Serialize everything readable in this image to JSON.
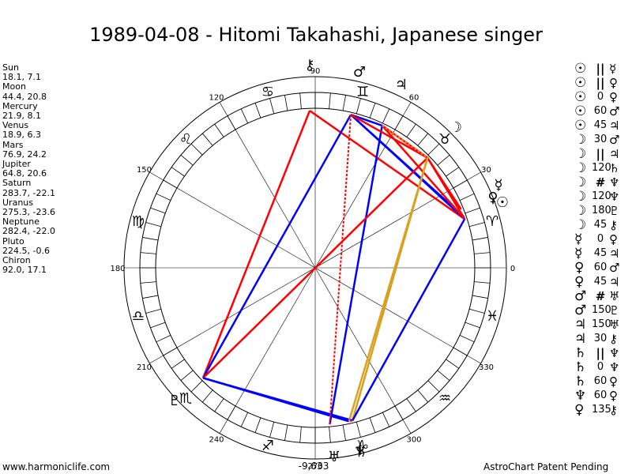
{
  "title": "1989-04-08 - Hitomi Takahashi, Japanese singer",
  "planets": [
    {
      "name": "Sun",
      "coords": "18.1, 7.1",
      "glyph": "☉",
      "lon": 18.1
    },
    {
      "name": "Moon",
      "coords": "44.4, 20.8",
      "glyph": "☽",
      "lon": 44.4
    },
    {
      "name": "Mercury",
      "coords": "21.9, 8.1",
      "glyph": "☿",
      "lon": 21.9
    },
    {
      "name": "Venus",
      "coords": "18.9, 6.3",
      "glyph": "♀",
      "lon": 18.9
    },
    {
      "name": "Mars",
      "coords": "76.9, 24.2",
      "glyph": "♂",
      "lon": 76.9
    },
    {
      "name": "Jupiter",
      "coords": "64.8, 20.6",
      "glyph": "♃",
      "lon": 64.8
    },
    {
      "name": "Saturn",
      "coords": "283.7, -22.1",
      "glyph": "♄",
      "lon": 283.7
    },
    {
      "name": "Uranus",
      "coords": "275.3, -23.6",
      "glyph": "♅",
      "lon": 275.3
    },
    {
      "name": "Neptune",
      "coords": "282.4, -22.0",
      "glyph": "♆",
      "lon": 282.4
    },
    {
      "name": "Pluto",
      "coords": "224.5, -0.6",
      "glyph": "♇",
      "lon": 224.5
    },
    {
      "name": "Chiron",
      "coords": "92.0, 17.1",
      "glyph": "⚷",
      "lon": 92.0
    }
  ],
  "aspects": [
    {
      "p1": "☉",
      "type": "||",
      "p2": "☿"
    },
    {
      "p1": "☉",
      "type": "||",
      "p2": "♀"
    },
    {
      "p1": "☉",
      "type": "0",
      "p2": "♀"
    },
    {
      "p1": "☉",
      "type": "60",
      "p2": "♂"
    },
    {
      "p1": "☉",
      "type": "45",
      "p2": "♃"
    },
    {
      "p1": "☽",
      "type": "30",
      "p2": "♂"
    },
    {
      "p1": "☽",
      "type": "||",
      "p2": "♃"
    },
    {
      "p1": "☽",
      "type": "120",
      "p2": "♄"
    },
    {
      "p1": "☽",
      "type": "#",
      "p2": "♆"
    },
    {
      "p1": "☽",
      "type": "120",
      "p2": "♆"
    },
    {
      "p1": "☽",
      "type": "180",
      "p2": "♇"
    },
    {
      "p1": "☽",
      "type": "45",
      "p2": "⚷"
    },
    {
      "p1": "☿",
      "type": "0",
      "p2": "♀"
    },
    {
      "p1": "☿",
      "type": "45",
      "p2": "♃"
    },
    {
      "p1": "♀",
      "type": "60",
      "p2": "♂"
    },
    {
      "p1": "♀",
      "type": "45",
      "p2": "♃"
    },
    {
      "p1": "♂",
      "type": "#",
      "p2": "♅"
    },
    {
      "p1": "♂",
      "type": "150",
      "p2": "♇"
    },
    {
      "p1": "♃",
      "type": "150",
      "p2": "♅"
    },
    {
      "p1": "♃",
      "type": "30",
      "p2": "⚷"
    },
    {
      "p1": "♄",
      "type": "||",
      "p2": "♆"
    },
    {
      "p1": "♄",
      "type": "0",
      "p2": "♆"
    },
    {
      "p1": "♄",
      "type": "60",
      "p2": "♀"
    },
    {
      "p1": "♆",
      "type": "60",
      "p2": "♀"
    },
    {
      "p1": "♀",
      "type": "135",
      "p2": "⚷"
    }
  ],
  "degree_labels": [
    {
      "text": "0",
      "deg": 0
    },
    {
      "text": "30",
      "deg": 30
    },
    {
      "text": "60",
      "deg": 60
    },
    {
      "text": "90",
      "deg": 90
    },
    {
      "text": "120",
      "deg": 120
    },
    {
      "text": "150",
      "deg": 150
    },
    {
      "text": "180",
      "deg": 180
    },
    {
      "text": "210",
      "deg": 210
    },
    {
      "text": "240",
      "deg": 240
    },
    {
      "text": "270",
      "deg": 270
    },
    {
      "text": "300",
      "deg": 300
    },
    {
      "text": "330",
      "deg": 330
    }
  ],
  "signs": [
    {
      "glyph": "♓",
      "deg": 345
    },
    {
      "glyph": "♈",
      "deg": 15
    },
    {
      "glyph": "♉",
      "deg": 45
    },
    {
      "glyph": "♊",
      "deg": 75
    },
    {
      "glyph": "♋",
      "deg": 105
    },
    {
      "glyph": "♌",
      "deg": 135
    },
    {
      "glyph": "♍",
      "deg": 165
    },
    {
      "glyph": "♎",
      "deg": 195
    },
    {
      "glyph": "♏",
      "deg": 225
    },
    {
      "glyph": "♐",
      "deg": 255
    },
    {
      "glyph": "♑",
      "deg": 285
    },
    {
      "glyph": "♒",
      "deg": 315
    }
  ],
  "bottom_value": "-9,633",
  "footer_left": "www.harmoniclife.com",
  "footer_right": "AstroChart Patent Pending",
  "colors": {
    "red": "#ff0000",
    "blue": "#0000ff",
    "orange": "#e8a020",
    "gold": "#d4a020"
  }
}
